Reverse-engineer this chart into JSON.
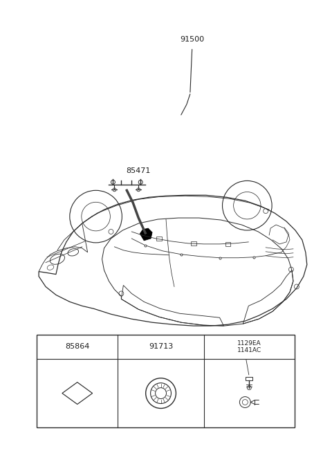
{
  "bg_color": "#ffffff",
  "fig_width": 4.8,
  "fig_height": 6.55,
  "dpi": 100,
  "label_91500": "91500",
  "label_85471": "85471",
  "label_85864": "85864",
  "label_91713": "91713",
  "label_1129EA": "1129EA",
  "label_1141AC": "1141AC",
  "line_color": "#2a2a2a",
  "text_color": "#1a1a1a",
  "font_size_labels": 8.0,
  "font_size_small": 7.0
}
